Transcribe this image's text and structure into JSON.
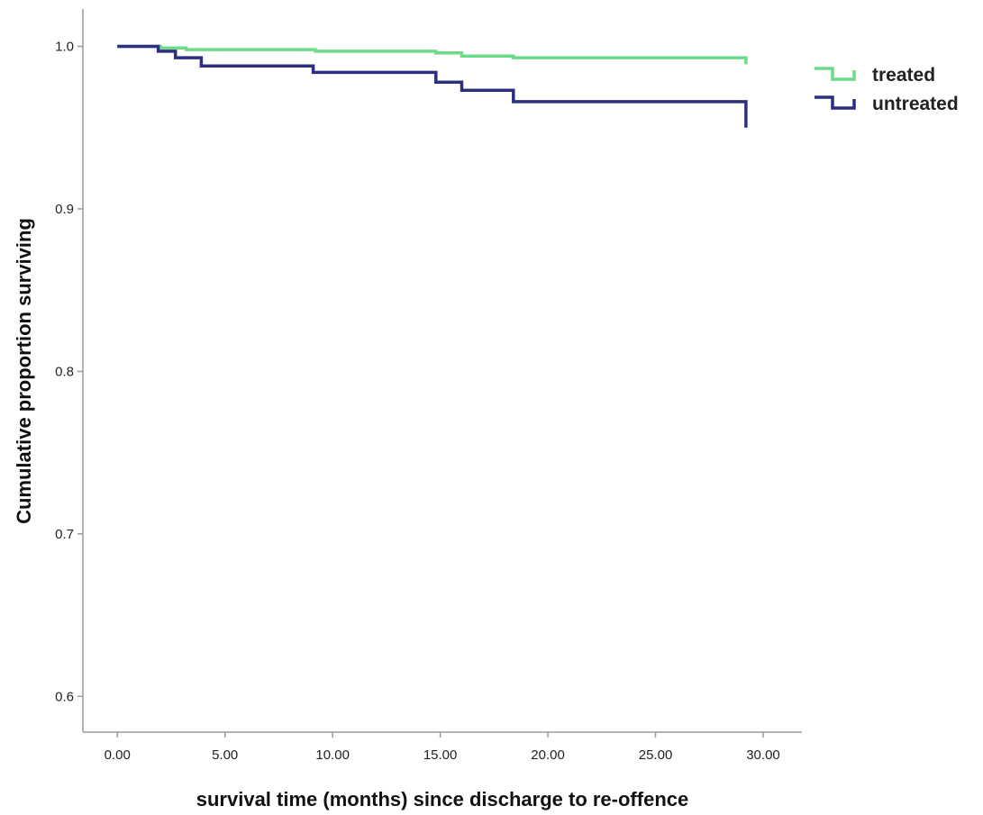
{
  "chart_data": {
    "type": "line",
    "step": true,
    "xlabel": "survival time (months) since discharge to re-offence",
    "ylabel": "Cumulative proportion surviving",
    "xlim": [
      -1.6,
      31.8
    ],
    "ylim": [
      0.578,
      1.023
    ],
    "x_ticks": [
      0,
      5,
      10,
      15,
      20,
      25,
      30
    ],
    "x_tick_labels": [
      "0.00",
      "5.00",
      "10.00",
      "15.00",
      "20.00",
      "25.00",
      "30.00"
    ],
    "y_ticks": [
      0.6,
      0.7,
      0.8,
      0.9,
      1.0
    ],
    "y_tick_labels": [
      "0.6",
      "0.7",
      "0.8",
      "0.9",
      "1.0"
    ],
    "grid": false,
    "legend_position": "top-right",
    "series": [
      {
        "name": "treated",
        "color": "#6ddc8a",
        "points": [
          [
            0,
            1.0
          ],
          [
            2.0,
            1.0
          ],
          [
            2.0,
            0.999
          ],
          [
            3.2,
            0.999
          ],
          [
            3.2,
            0.998
          ],
          [
            9.2,
            0.998
          ],
          [
            9.2,
            0.997
          ],
          [
            14.8,
            0.997
          ],
          [
            14.8,
            0.996
          ],
          [
            16.0,
            0.996
          ],
          [
            16.0,
            0.994
          ],
          [
            18.4,
            0.994
          ],
          [
            18.4,
            0.993
          ],
          [
            29.2,
            0.993
          ],
          [
            29.2,
            0.989
          ]
        ]
      },
      {
        "name": "untreated",
        "color": "#2b2f7e",
        "points": [
          [
            0,
            1.0
          ],
          [
            1.9,
            1.0
          ],
          [
            1.9,
            0.997
          ],
          [
            2.7,
            0.997
          ],
          [
            2.7,
            0.993
          ],
          [
            3.9,
            0.993
          ],
          [
            3.9,
            0.988
          ],
          [
            9.1,
            0.988
          ],
          [
            9.1,
            0.984
          ],
          [
            14.8,
            0.984
          ],
          [
            14.8,
            0.978
          ],
          [
            16.0,
            0.978
          ],
          [
            16.0,
            0.973
          ],
          [
            18.4,
            0.973
          ],
          [
            18.4,
            0.966
          ],
          [
            29.2,
            0.966
          ],
          [
            29.2,
            0.95
          ]
        ]
      }
    ]
  }
}
